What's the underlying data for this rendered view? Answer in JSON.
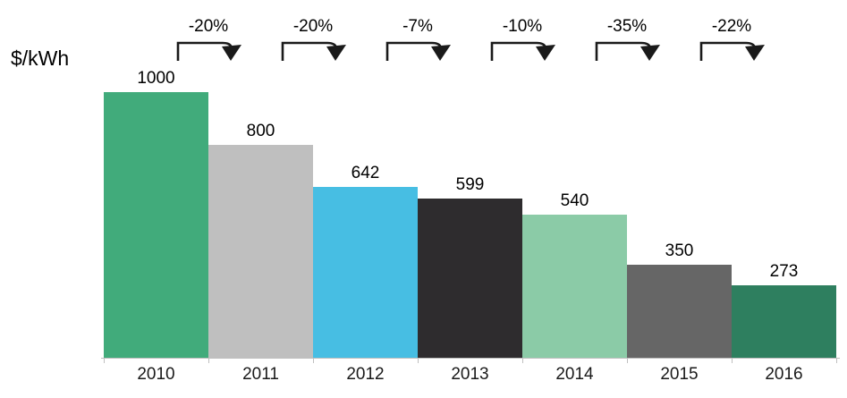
{
  "y_axis_label": "$/kWh",
  "chart_data": {
    "type": "bar",
    "title": "",
    "xlabel": "",
    "ylabel": "$/kWh",
    "categories": [
      "2010",
      "2011",
      "2012",
      "2013",
      "2014",
      "2015",
      "2016"
    ],
    "values": [
      1000,
      800,
      642,
      599,
      540,
      350,
      273
    ],
    "changes": [
      "-20%",
      "-20%",
      "-7%",
      "-10%",
      "-35%",
      "-22%"
    ],
    "bar_colors": [
      "#41AB7B",
      "#BFBFBF",
      "#47BEE3",
      "#2E2C2E",
      "#8BCBA7",
      "#666666",
      "#2E7F5F"
    ],
    "ylim": [
      0,
      1050
    ],
    "grid": false,
    "legend": false,
    "annotations": "yearly percentage decline shown with bent down-arrows between consecutive bars"
  },
  "style": {
    "axis_color": "#BFBFBF",
    "text_color": "#000000",
    "arrow_color": "#1a1a1a"
  }
}
